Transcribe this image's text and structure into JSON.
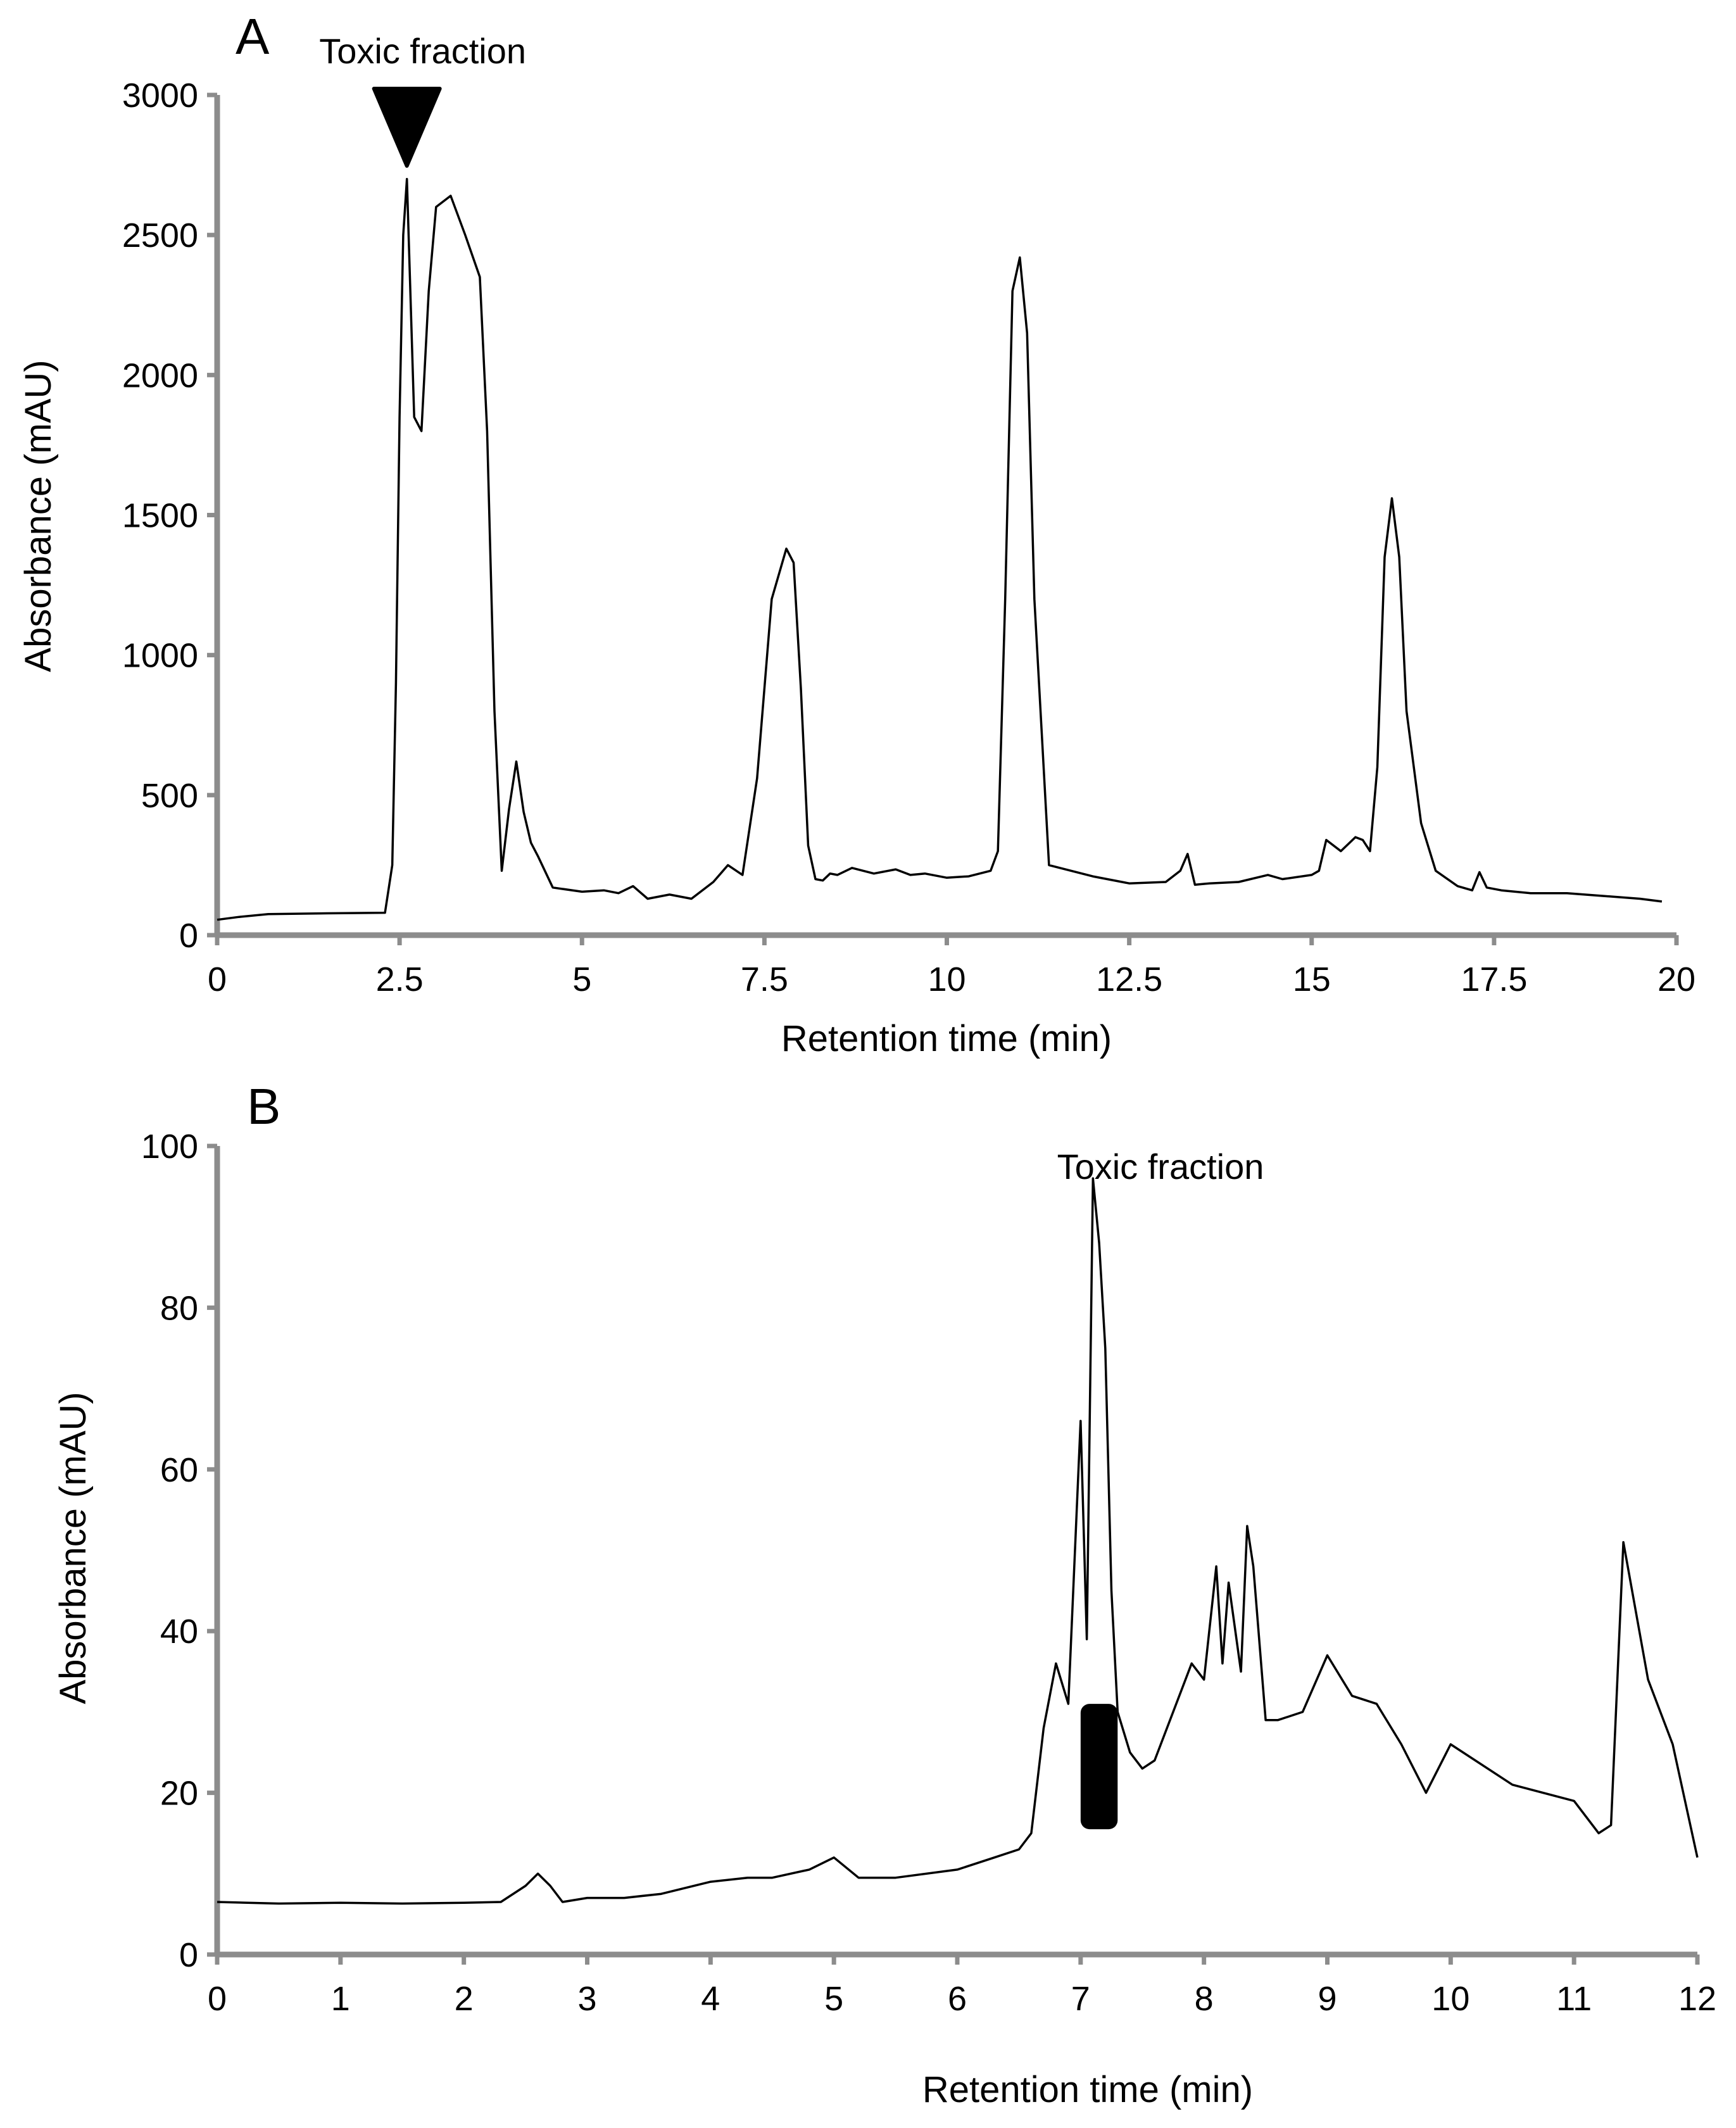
{
  "chart_data": [
    {
      "panel_label": "A",
      "type": "line",
      "xlabel": "Retention time (min)",
      "ylabel": "Absorbance (mAU)",
      "xlim": [
        0,
        20
      ],
      "ylim": [
        0,
        3000
      ],
      "xticks": [
        0,
        2.5,
        5,
        7.5,
        10,
        12.5,
        15,
        17.5,
        20
      ],
      "xtick_labels": [
        "0",
        "2.5",
        "5",
        "7.5",
        "10",
        "12.5",
        "15",
        "17.5",
        "20"
      ],
      "yticks": [
        0,
        500,
        1000,
        1500,
        2000,
        2500,
        3000
      ],
      "ytick_labels": [
        "0",
        "500",
        "1000",
        "1500",
        "2000",
        "2500",
        "3000"
      ],
      "grid": false,
      "annotation": {
        "text": "Toxic fraction",
        "marker": "triangle",
        "x": 2.6
      },
      "series": [
        {
          "color": "#000000",
          "x": [
            0,
            0.3,
            0.7,
            1.5,
            2.3,
            2.4,
            2.45,
            2.5,
            2.55,
            2.6,
            2.7,
            2.8,
            2.9,
            3.0,
            3.2,
            3.4,
            3.6,
            3.7,
            3.8,
            3.9,
            4.0,
            4.1,
            4.2,
            4.3,
            4.4,
            4.6,
            5.0,
            5.3,
            5.5,
            5.7,
            5.9,
            6.2,
            6.5,
            6.8,
            7.0,
            7.2,
            7.4,
            7.6,
            7.8,
            7.9,
            8.0,
            8.1,
            8.2,
            8.3,
            8.4,
            8.5,
            8.7,
            9.0,
            9.3,
            9.5,
            9.7,
            10.0,
            10.3,
            10.6,
            10.7,
            10.8,
            10.9,
            11.0,
            11.1,
            11.2,
            11.4,
            12.0,
            12.5,
            13.0,
            13.2,
            13.3,
            13.4,
            13.6,
            14.0,
            14.4,
            14.6,
            15.0,
            15.1,
            15.2,
            15.4,
            15.6,
            15.7,
            15.8,
            15.9,
            16.0,
            16.1,
            16.2,
            16.3,
            16.5,
            16.7,
            17.0,
            17.2,
            17.3,
            17.4,
            17.6,
            18.0,
            18.5,
            19.0,
            19.5,
            19.8
          ],
          "y": [
            55,
            65,
            75,
            78,
            80,
            250,
            900,
            1850,
            2500,
            2700,
            1850,
            1800,
            2300,
            2600,
            2640,
            2500,
            2350,
            1800,
            800,
            230,
            450,
            620,
            440,
            330,
            280,
            170,
            155,
            160,
            150,
            175,
            130,
            145,
            130,
            190,
            250,
            215,
            560,
            1200,
            1380,
            1330,
            880,
            320,
            200,
            195,
            220,
            215,
            240,
            220,
            235,
            215,
            220,
            205,
            210,
            230,
            300,
            1200,
            2300,
            2420,
            2150,
            1200,
            250,
            210,
            185,
            190,
            230,
            290,
            180,
            185,
            190,
            215,
            200,
            215,
            230,
            340,
            300,
            350,
            340,
            300,
            600,
            1350,
            1560,
            1350,
            800,
            400,
            230,
            175,
            160,
            225,
            170,
            160,
            150,
            150,
            140,
            130,
            120
          ]
        }
      ]
    },
    {
      "panel_label": "B",
      "type": "line",
      "xlabel": "Retention time (min)",
      "ylabel": "Absorbance (mAU)",
      "xlim": [
        0,
        12
      ],
      "ylim": [
        0,
        100
      ],
      "xticks": [
        0,
        1,
        2,
        3,
        4,
        5,
        6,
        7,
        8,
        9,
        10,
        11,
        12
      ],
      "xtick_labels": [
        "0",
        "1",
        "2",
        "3",
        "4",
        "5",
        "6",
        "7",
        "8",
        "9",
        "10",
        "11",
        "12"
      ],
      "yticks": [
        0,
        20,
        40,
        60,
        80,
        100
      ],
      "ytick_labels": [
        "0",
        "20",
        "40",
        "60",
        "80",
        "100"
      ],
      "grid": false,
      "annotation": {
        "text": "Toxic fraction",
        "marker": "bar",
        "x_range": [
          7.0,
          7.3
        ],
        "y_range": [
          15.5,
          31
        ]
      },
      "series": [
        {
          "color": "#000000",
          "x": [
            0,
            0.5,
            1.0,
            1.5,
            2.0,
            2.3,
            2.5,
            2.6,
            2.7,
            2.8,
            3.0,
            3.3,
            3.6,
            4.0,
            4.3,
            4.5,
            4.8,
            5.0,
            5.2,
            5.5,
            6.0,
            6.3,
            6.5,
            6.6,
            6.7,
            6.8,
            6.9,
            7.0,
            7.05,
            7.1,
            7.15,
            7.2,
            7.25,
            7.3,
            7.4,
            7.5,
            7.6,
            7.8,
            7.9,
            8.0,
            8.1,
            8.15,
            8.2,
            8.3,
            8.35,
            8.4,
            8.5,
            8.6,
            8.8,
            9.0,
            9.2,
            9.4,
            9.6,
            9.8,
            10.0,
            10.5,
            11.0,
            11.2,
            11.3,
            11.4,
            11.6,
            11.8,
            12.0
          ],
          "y": [
            6.5,
            6.3,
            6.4,
            6.3,
            6.4,
            6.5,
            8.5,
            10,
            8.5,
            6.5,
            7,
            7,
            7.5,
            9,
            9.5,
            9.5,
            10.5,
            12,
            9.5,
            9.5,
            10.5,
            12,
            13,
            15,
            28,
            36,
            31,
            66,
            39,
            96,
            88,
            75,
            45,
            30,
            25,
            23,
            24,
            32,
            36,
            34,
            48,
            36,
            46,
            35,
            53,
            48,
            29,
            29,
            30,
            37,
            32,
            31,
            26,
            20,
            26,
            21,
            19,
            15,
            16,
            51,
            34,
            26,
            12
          ]
        }
      ]
    }
  ]
}
